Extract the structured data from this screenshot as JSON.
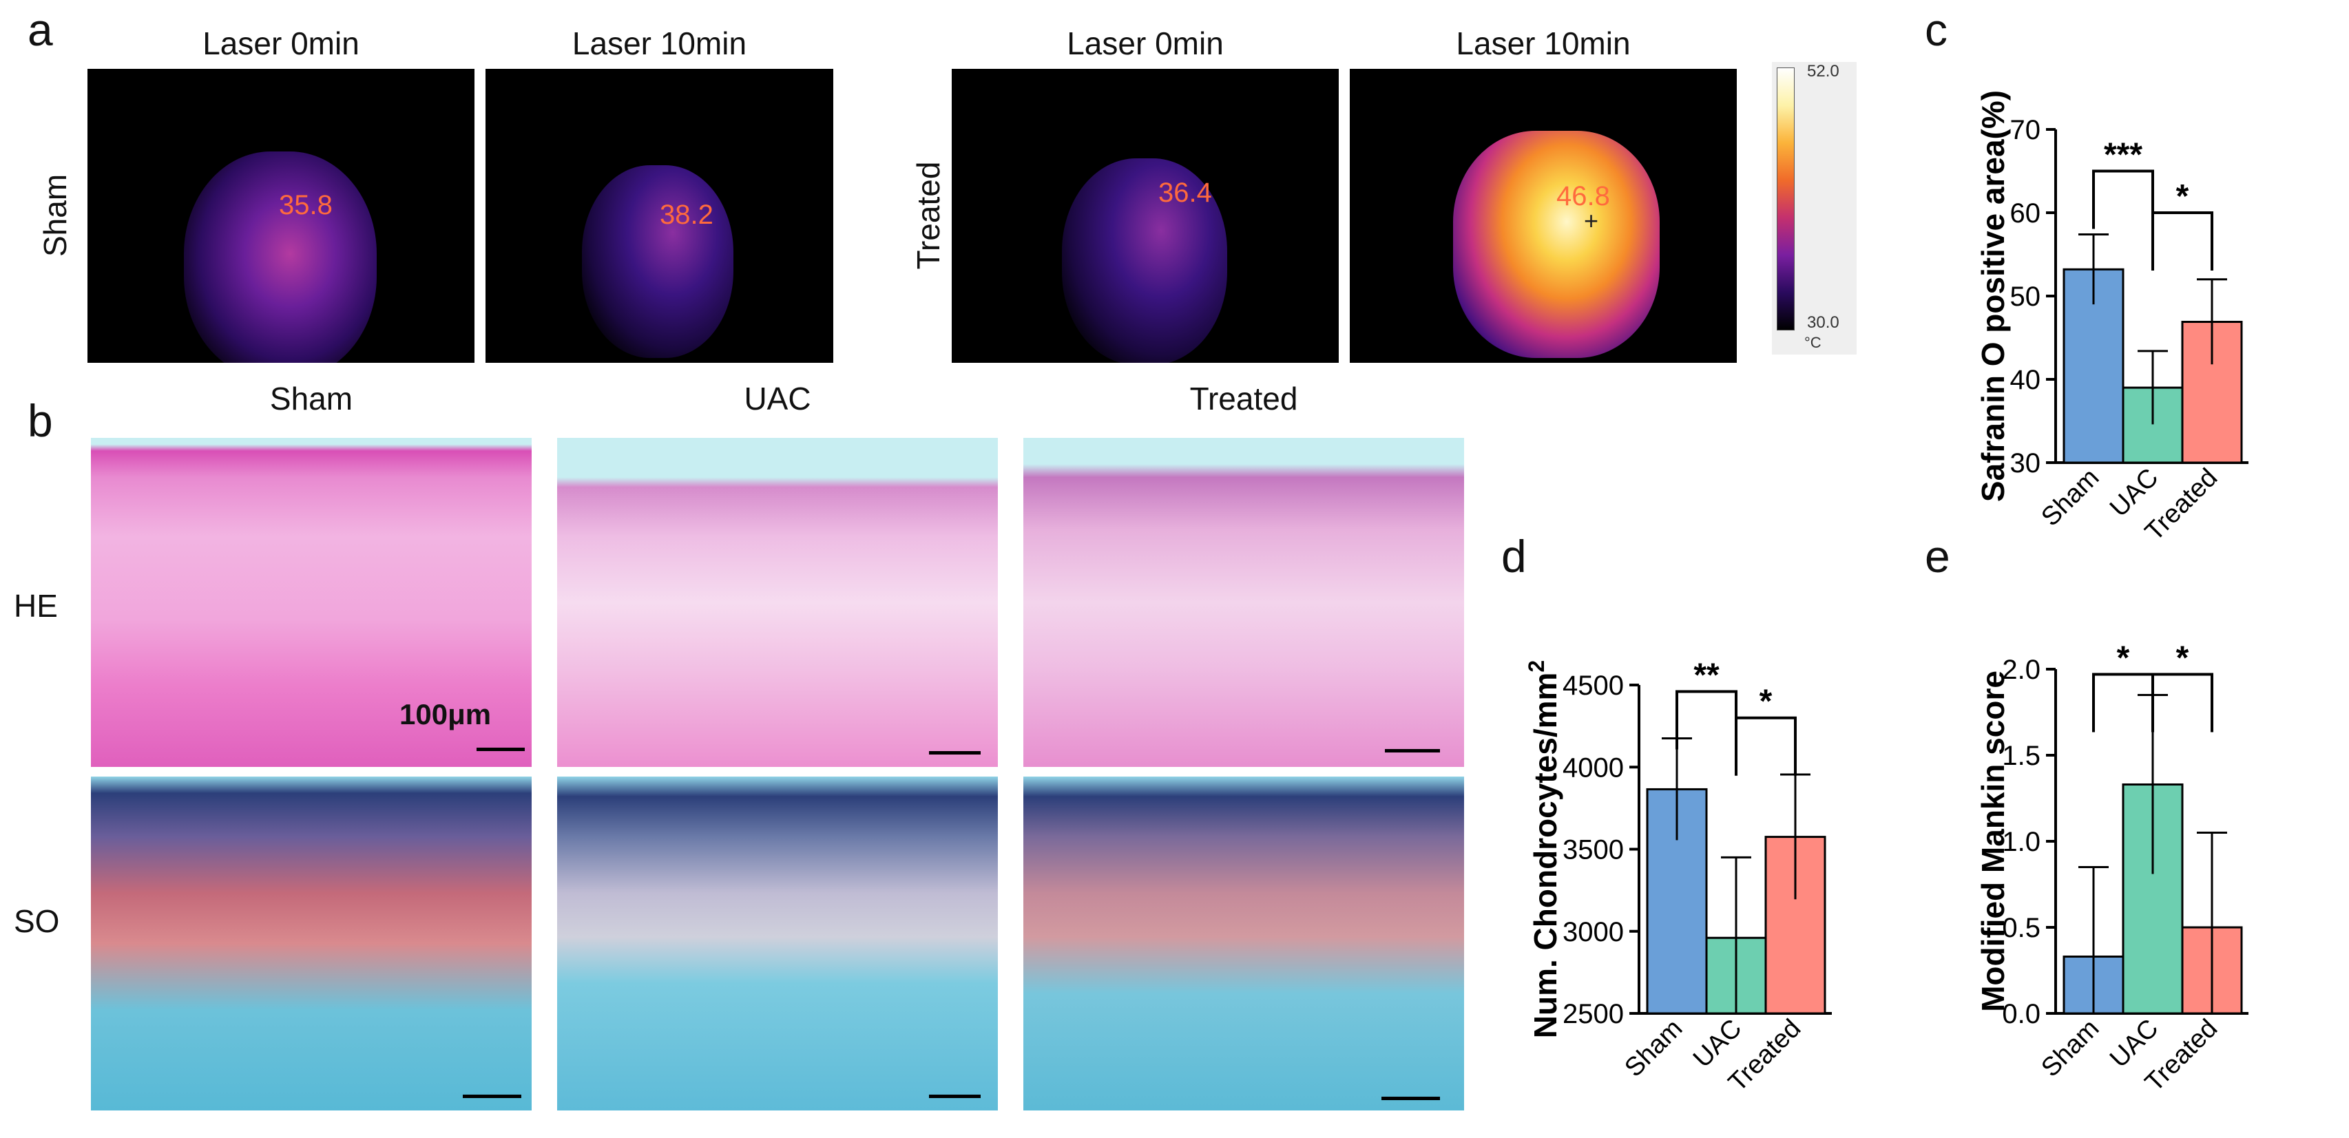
{
  "panel_letters": {
    "a": "a",
    "b": "b",
    "c": "c",
    "d": "d",
    "e": "e"
  },
  "panel_a": {
    "groups": [
      {
        "row_label": "Sham",
        "images": [
          {
            "title": "Laser 0min",
            "temp": "35.8"
          },
          {
            "title": "Laser 10min",
            "temp": "38.2"
          }
        ]
      },
      {
        "row_label": "Treated",
        "images": [
          {
            "title": "Laser 0min",
            "temp": "36.4"
          },
          {
            "title": "Laser 10min",
            "temp": "46.8"
          }
        ]
      }
    ],
    "colorbar": {
      "max": "52.0",
      "min": "30.0",
      "unit": "°C",
      "colors": [
        "#000000",
        "#2a0a5e",
        "#7a1fa0",
        "#c4306e",
        "#f06b2a",
        "#fbb33a",
        "#fdf2a8",
        "#ffffff"
      ]
    }
  },
  "panel_b": {
    "columns": [
      "Sham",
      "UAC",
      "Treated"
    ],
    "rows": [
      "HE",
      "SO"
    ],
    "scale_label": "100μm"
  },
  "chart_data": [
    {
      "id": "c",
      "type": "bar",
      "categories": [
        "Sham",
        "UAC",
        "Treated"
      ],
      "values": [
        53.2,
        39.0,
        46.9
      ],
      "errors": [
        4.2,
        4.4,
        5.1
      ],
      "colors": [
        "#6a9fd8",
        "#6dcfb0",
        "#ff8a80"
      ],
      "ylabel": "Safranin O positive area(%)",
      "ylim": [
        30,
        70
      ],
      "yticks": [
        30,
        40,
        50,
        60,
        70
      ],
      "significance": [
        {
          "from": 0,
          "to": 1,
          "label": "***",
          "y": 65
        },
        {
          "from": 1,
          "to": 2,
          "label": "*",
          "y": 60
        }
      ]
    },
    {
      "id": "d",
      "type": "bar",
      "categories": [
        "Sham",
        "UAC",
        "Treated"
      ],
      "values": [
        3865,
        2960,
        3575
      ],
      "errors": [
        310,
        490,
        380
      ],
      "colors": [
        "#6a9fd8",
        "#6dcfb0",
        "#ff8a80"
      ],
      "ylabel": "Num. Chondrocytes/mm",
      "ylabel_sup": "2",
      "ylim": [
        2500,
        4500
      ],
      "yticks": [
        2500,
        3000,
        3500,
        4000,
        4500
      ],
      "significance": [
        {
          "from": 0,
          "to": 1,
          "label": "**",
          "y": 4460
        },
        {
          "from": 1,
          "to": 2,
          "label": "*",
          "y": 4300
        }
      ]
    },
    {
      "id": "e",
      "type": "bar",
      "categories": [
        "Sham",
        "UAC",
        "Treated"
      ],
      "values": [
        0.33,
        1.33,
        0.5
      ],
      "errors": [
        0.52,
        0.52,
        0.55
      ],
      "colors": [
        "#6a9fd8",
        "#6dcfb0",
        "#ff8a80"
      ],
      "ylabel": "Modified Mankin score",
      "ylim": [
        0,
        2.0
      ],
      "yticks": [
        0.0,
        0.5,
        1.0,
        1.5,
        2.0
      ],
      "ytick_labels": [
        "0.0",
        "0.5",
        "1.0",
        "1.5",
        "2.0"
      ],
      "significance": [
        {
          "from": 0,
          "to": 1,
          "label": "*",
          "y": 1.97
        },
        {
          "from": 1,
          "to": 2,
          "label": "*",
          "y": 1.97
        }
      ]
    }
  ]
}
